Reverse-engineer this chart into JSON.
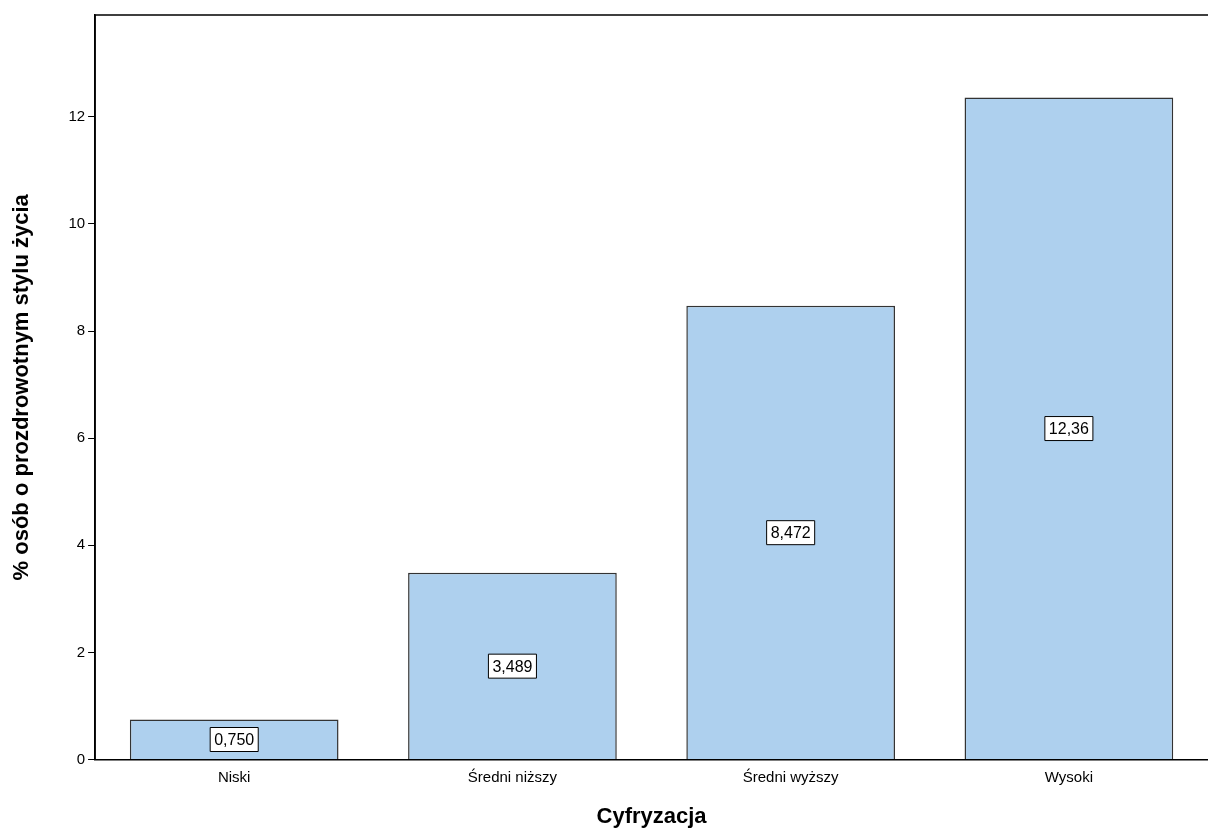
{
  "chart_data": {
    "type": "bar",
    "xlabel": "Cyfryzacja",
    "ylabel": "% osób o prozdrowotnym stylu życia",
    "categories": [
      "Niski",
      "Średni niższy",
      "Średni wyższy",
      "Wysoki"
    ],
    "values": [
      0.75,
      3.489,
      8.472,
      12.36
    ],
    "value_labels": [
      "0,750",
      "3,489",
      "8,472",
      "12,36"
    ],
    "color": "#aed0ee",
    "ylim": [
      0,
      13.9
    ],
    "yticks": [
      0,
      2,
      4,
      6,
      8,
      10,
      12
    ],
    "grid": false,
    "legend": false
  }
}
